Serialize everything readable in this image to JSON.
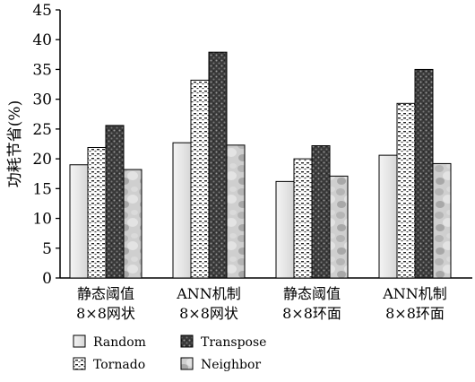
{
  "chart_data": {
    "type": "bar",
    "title": "",
    "xlabel": "",
    "ylabel": "功耗节省(%)",
    "ylim": [
      0,
      45
    ],
    "yticks": [
      0,
      5,
      10,
      15,
      20,
      25,
      30,
      35,
      40,
      45
    ],
    "grid": false,
    "legend_position": "bottom-left",
    "categories": [
      [
        "静态阈值",
        "8×8网状"
      ],
      [
        "ANN机制",
        "8×8网状"
      ],
      [
        "静态阈值",
        "8×8环面"
      ],
      [
        "ANN机制",
        "8×8环面"
      ]
    ],
    "series": [
      {
        "name": "Random",
        "values": [
          19.0,
          22.7,
          16.2,
          20.6
        ],
        "color": "#e8e8e8",
        "pattern": "solid-light"
      },
      {
        "name": "Tornado",
        "values": [
          21.9,
          33.2,
          20.0,
          29.3
        ],
        "color": "#ffffff",
        "pattern": "dashed-stripes"
      },
      {
        "name": "Transpose",
        "values": [
          25.6,
          37.9,
          22.2,
          35.0
        ],
        "color": "#555555",
        "pattern": "dark-dots"
      },
      {
        "name": "Neighbor",
        "values": [
          18.2,
          22.3,
          17.1,
          19.2
        ],
        "color": "#c8c8c8",
        "pattern": "mottled"
      }
    ],
    "legend_order": [
      "Random",
      "Transpose",
      "Tornado",
      "Neighbor"
    ]
  }
}
